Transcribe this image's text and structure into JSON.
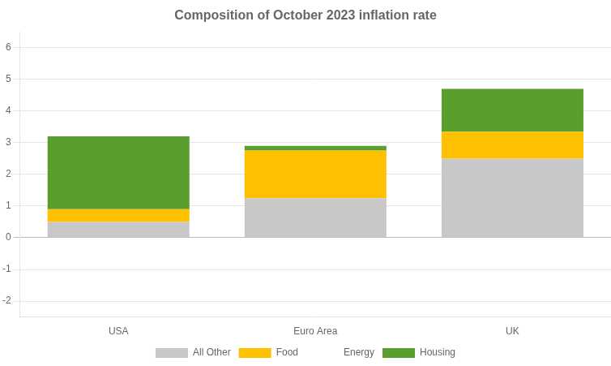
{
  "chart_data": {
    "type": "bar",
    "title": "Composition of October 2023 inflation rate",
    "categories": [
      "USA",
      "Euro Area",
      "UK"
    ],
    "series": [
      {
        "name": "All Other",
        "color": "#c8c8c8",
        "values": [
          0.5,
          1.25,
          2.5
        ]
      },
      {
        "name": "Food",
        "color": "#ffc000",
        "values": [
          0.4,
          1.5,
          0.85
        ]
      },
      {
        "name": "Energy",
        "color": "#ffffff",
        "values": [
          0.0,
          0.0,
          0.0
        ]
      },
      {
        "name": "Housing",
        "color": "#5a9e2f",
        "values": [
          2.3,
          0.15,
          1.35
        ]
      }
    ],
    "stacked": true,
    "ylim": [
      -2.5,
      6.5
    ],
    "yticks": [
      -2,
      -1,
      0,
      1,
      2,
      3,
      4,
      5,
      6
    ],
    "grid": true,
    "legend": "bottom"
  }
}
